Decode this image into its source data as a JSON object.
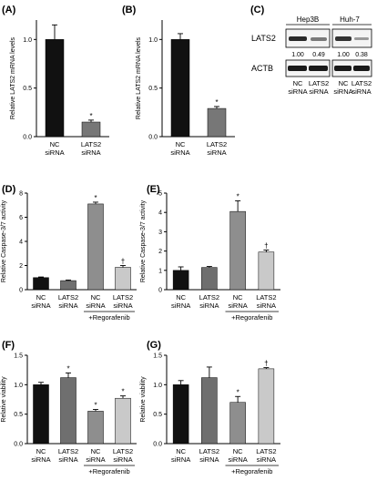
{
  "panels": {
    "A": {
      "label": "(A)",
      "ylabel": "Relative LATS2 mRNA levels"
    },
    "B": {
      "label": "(B)",
      "ylabel": "Relative LATS2 mRNA levels"
    },
    "C": {
      "label": "(C)"
    },
    "D": {
      "label": "(D)",
      "ylabel": "Relative Caspase-3/7 activity",
      "group_label": "+Regorafenib"
    },
    "E": {
      "label": "(E)",
      "ylabel": "Relative Caspase-3/7 activity",
      "group_label": "+Regorafenib"
    },
    "F": {
      "label": "(F)",
      "ylabel": "Relative viability",
      "group_label": "+Regorafenib"
    },
    "G": {
      "label": "(G)",
      "ylabel": "Relative viability",
      "group_label": "+Regorafenib"
    }
  },
  "western": {
    "cell_lines": [
      "Hep3B",
      "Huh-7"
    ],
    "rows": [
      "LATS2",
      "ACTB"
    ],
    "quantification": [
      "1.00",
      "0.49",
      "1.00",
      "0.38"
    ],
    "lanes": [
      [
        "NC",
        "siRNA"
      ],
      [
        "LATS2",
        "siRNA"
      ],
      [
        "NC",
        "siRNA"
      ],
      [
        "LATS2",
        "siRNA"
      ]
    ]
  },
  "chart_data": [
    {
      "id": "A",
      "type": "bar",
      "title": "",
      "xlabel": "",
      "ylabel": "Relative LATS2 mRNA levels",
      "ylim": [
        0,
        1.2
      ],
      "yticks": [
        "0.0",
        "0.5",
        "1.0"
      ],
      "ytick_values": [
        0,
        0.5,
        1.0
      ],
      "categories": [
        [
          "NC",
          "siRNA"
        ],
        [
          "LATS2",
          "siRNA"
        ]
      ],
      "values": [
        1.0,
        0.15
      ],
      "errors": [
        0.15,
        0.02
      ],
      "annotations": [
        "",
        "*"
      ],
      "colors": [
        "#111111",
        "#777777"
      ]
    },
    {
      "id": "B",
      "type": "bar",
      "title": "",
      "xlabel": "",
      "ylabel": "Relative LATS2 mRNA levels",
      "ylim": [
        0,
        1.2
      ],
      "yticks": [
        "0.0",
        "0.5",
        "1.0"
      ],
      "ytick_values": [
        0,
        0.5,
        1.0
      ],
      "categories": [
        [
          "NC",
          "siRNA"
        ],
        [
          "LATS2",
          "siRNA"
        ]
      ],
      "values": [
        1.0,
        0.29
      ],
      "errors": [
        0.06,
        0.02
      ],
      "annotations": [
        "",
        "*"
      ],
      "colors": [
        "#111111",
        "#777777"
      ]
    },
    {
      "id": "D",
      "type": "bar",
      "title": "",
      "xlabel": "",
      "ylabel": "Relative Caspase-3/7 activity",
      "ylim": [
        0,
        8
      ],
      "yticks": [
        "0",
        "2",
        "4",
        "6",
        "8"
      ],
      "ytick_values": [
        0,
        2,
        4,
        6,
        8
      ],
      "categories": [
        [
          "NC",
          "siRNA"
        ],
        [
          "LATS2",
          "siRNA"
        ],
        [
          "NC",
          "siRNA"
        ],
        [
          "LATS2",
          "siRNA"
        ]
      ],
      "values": [
        1.0,
        0.75,
        7.1,
        1.85
      ],
      "errors": [
        0.05,
        0.05,
        0.15,
        0.15
      ],
      "annotations": [
        "",
        "",
        "*",
        "†"
      ],
      "colors": [
        "#111111",
        "#6f6f6f",
        "#8e8e8e",
        "#c9c9c9"
      ]
    },
    {
      "id": "E",
      "type": "bar",
      "title": "",
      "xlabel": "",
      "ylabel": "Relative Caspase-3/7 activity",
      "ylim": [
        0,
        5
      ],
      "yticks": [
        "0",
        "1",
        "2",
        "3",
        "4",
        "5"
      ],
      "ytick_values": [
        0,
        1,
        2,
        3,
        4,
        5
      ],
      "categories": [
        [
          "NC",
          "siRNA"
        ],
        [
          "LATS2",
          "siRNA"
        ],
        [
          "NC",
          "siRNA"
        ],
        [
          "LATS2",
          "siRNA"
        ]
      ],
      "values": [
        1.0,
        1.15,
        4.05,
        1.95
      ],
      "errors": [
        0.18,
        0.05,
        0.55,
        0.1
      ],
      "annotations": [
        "",
        "",
        "*",
        "†"
      ],
      "colors": [
        "#111111",
        "#6f6f6f",
        "#8e8e8e",
        "#c9c9c9"
      ]
    },
    {
      "id": "F",
      "type": "bar",
      "title": "",
      "xlabel": "",
      "ylabel": "Relative viability",
      "ylim": [
        0,
        1.5
      ],
      "yticks": [
        "0.0",
        "0.5",
        "1.0",
        "1.5"
      ],
      "ytick_values": [
        0,
        0.5,
        1.0,
        1.5
      ],
      "categories": [
        [
          "NC",
          "siRNA"
        ],
        [
          "LATS2",
          "siRNA"
        ],
        [
          "NC",
          "siRNA"
        ],
        [
          "LATS2",
          "siRNA"
        ]
      ],
      "values": [
        1.0,
        1.12,
        0.55,
        0.77
      ],
      "errors": [
        0.04,
        0.08,
        0.03,
        0.04
      ],
      "annotations": [
        "",
        "*",
        "*",
        "*"
      ],
      "colors": [
        "#111111",
        "#6f6f6f",
        "#8e8e8e",
        "#c9c9c9"
      ]
    },
    {
      "id": "G",
      "type": "bar",
      "title": "",
      "xlabel": "",
      "ylabel": "Relative viability",
      "ylim": [
        0,
        1.5
      ],
      "yticks": [
        "0.0",
        "0.5",
        "1.0",
        "1.5"
      ],
      "ytick_values": [
        0,
        0.5,
        1.0,
        1.5
      ],
      "categories": [
        [
          "NC",
          "siRNA"
        ],
        [
          "LATS2",
          "siRNA"
        ],
        [
          "NC",
          "siRNA"
        ],
        [
          "LATS2",
          "siRNA"
        ]
      ],
      "values": [
        1.0,
        1.12,
        0.7,
        1.27
      ],
      "errors": [
        0.07,
        0.18,
        0.1,
        0.02
      ],
      "annotations": [
        "",
        "",
        "*",
        "†"
      ],
      "colors": [
        "#111111",
        "#6f6f6f",
        "#8e8e8e",
        "#c9c9c9"
      ]
    }
  ]
}
